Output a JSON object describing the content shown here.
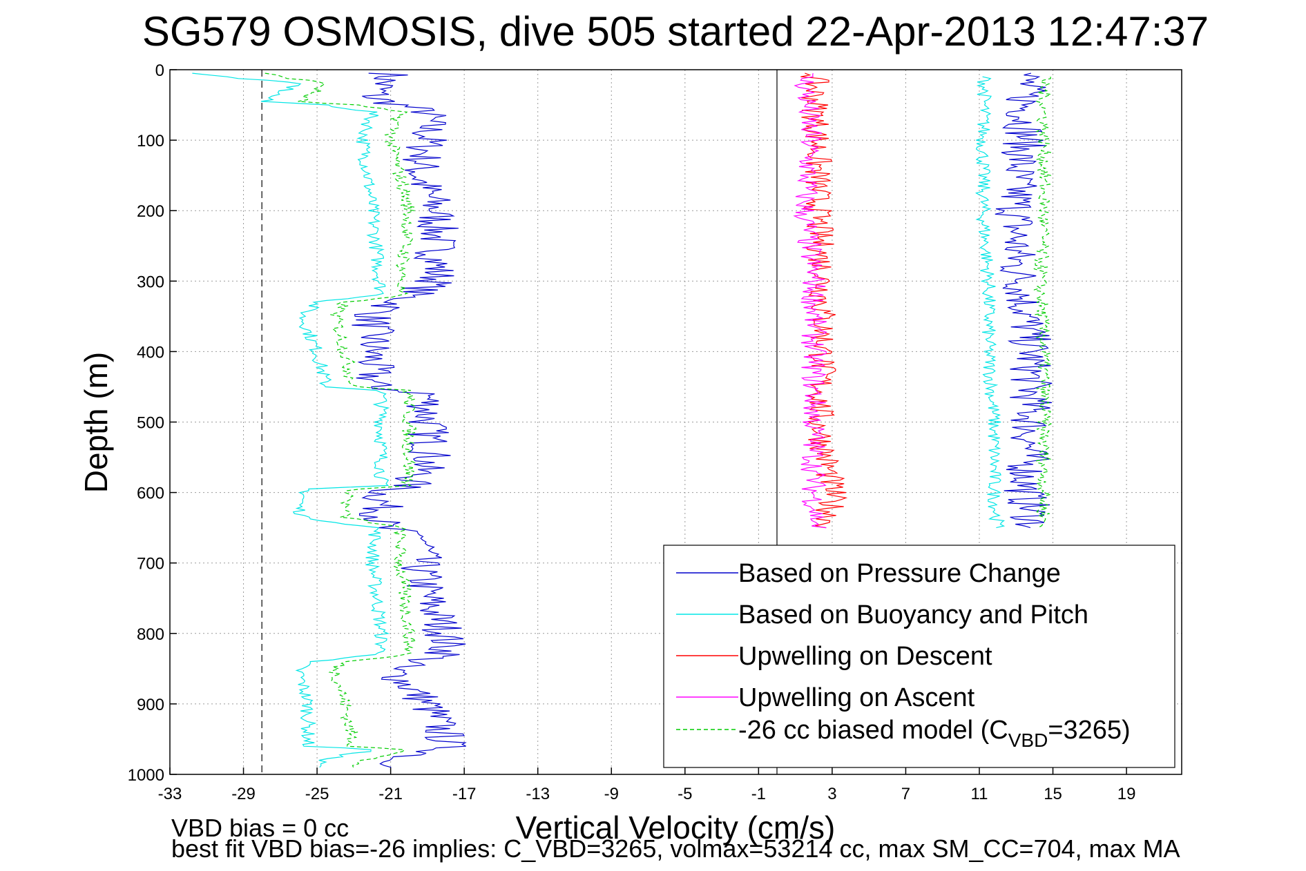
{
  "chart_data": {
    "type": "line",
    "title": "SG579 OSMOSIS, dive 505 started 22-Apr-2013 12:47:37",
    "xlabel": "Vertical Velocity (cm/s)",
    "ylabel": "Depth (m)",
    "xlim": [
      -33,
      22
    ],
    "ylim": [
      1000,
      0
    ],
    "y_reversed": true,
    "grid": true,
    "legend_placement": "bottom-right",
    "x_ticks": [
      "-33",
      "-29",
      "-25",
      "-21",
      "-17",
      "-13",
      "-9",
      "-5",
      "-1",
      "3",
      "7",
      "11",
      "15",
      "19"
    ],
    "y_ticks": [
      "0",
      "100",
      "200",
      "300",
      "400",
      "500",
      "600",
      "700",
      "800",
      "900",
      "1000"
    ],
    "vlines": [
      {
        "x": -28,
        "style": "dashed"
      },
      {
        "x": 0,
        "style": "solid"
      }
    ],
    "legend_model_label": {
      "prefix": "-26 cc biased model (C",
      "subscript": "VBD",
      "suffix": "=3265)"
    },
    "series": [
      {
        "name": "Based on Pressure Change",
        "color": "#0000cc",
        "style": "solid",
        "noise": 1.2,
        "down": {
          "y": [
            5,
            40,
            60,
            100,
            150,
            200,
            250,
            300,
            335,
            350,
            400,
            450,
            460,
            500,
            550,
            590,
            600,
            650,
            665,
            700,
            750,
            800,
            830,
            850,
            900,
            950,
            965,
            980,
            990
          ],
          "x": [
            -21,
            -22,
            -19,
            -19,
            -19.5,
            -18.5,
            -18.5,
            -18.5,
            -21,
            -22,
            -22,
            -22,
            -19,
            -19,
            -18.8,
            -20,
            -21.5,
            -21.5,
            -19,
            -19.5,
            -19,
            -18,
            -18,
            -21,
            -19,
            -18,
            -18,
            -21,
            -20
          ]
        },
        "up": {
          "y": [
            5,
            30,
            100,
            150,
            200,
            250,
            280,
            300,
            400,
            500,
            600,
            650
          ],
          "x": [
            13.5,
            13.5,
            13.5,
            13,
            13,
            13,
            13,
            13.3,
            13.8,
            13.8,
            13.5,
            14
          ]
        }
      },
      {
        "name": "Based on Buoyancy and Pitch",
        "color": "#00e5e5",
        "style": "solid",
        "noise": 0.4,
        "down": {
          "y": [
            5,
            20,
            45,
            50,
            60,
            100,
            200,
            320,
            330,
            350,
            400,
            450,
            455,
            500,
            590,
            595,
            620,
            635,
            650,
            700,
            800,
            830,
            840,
            850,
            900,
            960,
            965,
            980,
            990
          ],
          "x": [
            -32,
            -26,
            -28,
            -24.5,
            -22,
            -22.5,
            -22,
            -21.5,
            -25,
            -25.8,
            -25,
            -24.5,
            -21.5,
            -21.5,
            -21.5,
            -25.5,
            -26,
            -25.8,
            -21.8,
            -22,
            -21.5,
            -21.5,
            -25.5,
            -26,
            -25.5,
            -25.5,
            -22,
            -24.8,
            -25
          ]
        },
        "up": {
          "y": [
            10,
            100,
            200,
            300,
            400,
            500,
            600,
            650
          ],
          "x": [
            11.3,
            11.2,
            11.2,
            11.5,
            11.5,
            11.8,
            11.8,
            12
          ]
        }
      },
      {
        "name": "Upwelling on Descent",
        "color": "#ff0000",
        "style": "solid",
        "noise": 0.8,
        "down": {
          "y": [
            5,
            100,
            200,
            300,
            400,
            500,
            600,
            650
          ],
          "x": [
            2,
            2.2,
            2.2,
            2.5,
            2.5,
            2.3,
            3,
            2.8
          ]
        }
      },
      {
        "name": "Upwelling on Ascent",
        "color": "#ff00ff",
        "style": "solid",
        "noise": 0.7,
        "down": {
          "y": [
            5,
            100,
            200,
            300,
            400,
            500,
            600,
            650
          ],
          "x": [
            1.5,
            1.8,
            1.5,
            2,
            2,
            2,
            2,
            2.2
          ]
        }
      },
      {
        "name": "-26 cc biased model (CVBD=3265)",
        "color": "#00cc00",
        "style": "dashed",
        "noise": 0.4,
        "down": {
          "y": [
            5,
            20,
            45,
            50,
            60,
            100,
            200,
            320,
            330,
            350,
            400,
            450,
            455,
            500,
            590,
            595,
            620,
            635,
            650,
            700,
            800,
            830,
            840,
            850,
            900,
            960,
            965,
            980,
            990
          ],
          "x": [
            -28,
            -24.5,
            -26,
            -23,
            -20.5,
            -21,
            -20,
            -20.5,
            -23.5,
            -24,
            -23.5,
            -23,
            -20,
            -20,
            -20,
            -23,
            -23.5,
            -23.5,
            -20.5,
            -20.5,
            -20,
            -20,
            -23.5,
            -24,
            -23.5,
            -23,
            -20,
            -22.5,
            -23
          ]
        },
        "up": {
          "y": [
            10,
            100,
            200,
            300,
            400,
            500,
            600,
            650
          ],
          "x": [
            14.5,
            14.5,
            14.5,
            14.3,
            14.5,
            14.5,
            14.5,
            14.5
          ]
        }
      }
    ]
  },
  "footer": {
    "line1": "VBD bias = 0 cc",
    "line2": "best fit VBD bias=-26 implies: C_VBD=3265, volmax=53214 cc, max SM_CC=704, max MA"
  }
}
